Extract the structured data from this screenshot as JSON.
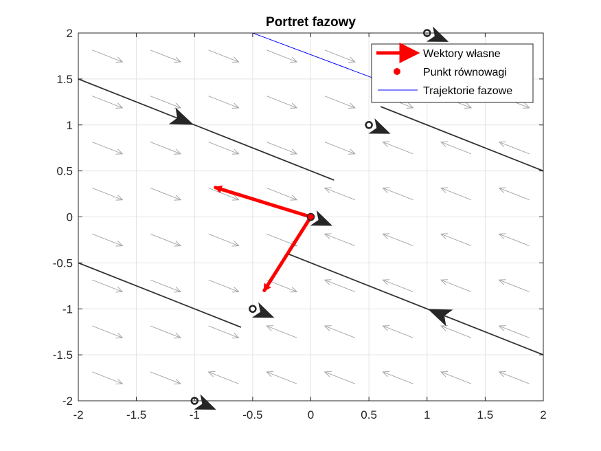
{
  "chart_data": {
    "type": "quiver",
    "title": "Portret fazowy",
    "xlabel": "",
    "ylabel": "",
    "xlim": [
      -2,
      2
    ],
    "ylim": [
      -2,
      2
    ],
    "xticks": [
      -2,
      -1.5,
      -1,
      -0.5,
      0,
      0.5,
      1,
      1.5,
      2
    ],
    "yticks": [
      -2,
      -1.5,
      -1,
      -0.5,
      0,
      0.5,
      1,
      1.5,
      2
    ],
    "xtick_labels": [
      "-2",
      "-1.5",
      "-1",
      "-0.5",
      "0",
      "0.5",
      "1",
      "1.5",
      "2"
    ],
    "ytick_labels": [
      "-2",
      "-1.5",
      "-1",
      "-0.5",
      "0",
      "0.5",
      "1",
      "1.5",
      "2"
    ],
    "grid": true,
    "legend_position": "top-right",
    "legend": [
      {
        "label": "Wektory własne",
        "kind": "arrow",
        "color": "#ff0000"
      },
      {
        "label": "Punkt równowagi",
        "kind": "dot",
        "color": "#ff0000"
      },
      {
        "label": "Trajektorie fazowe",
        "kind": "line",
        "color": "#0000ff"
      }
    ],
    "vector_field": {
      "color": "#a6a6a6",
      "x": [
        -1.75,
        -1.25,
        -0.75,
        -0.25,
        0.25,
        0.75,
        1.25,
        1.75
      ],
      "y": [
        -1.75,
        -1.25,
        -0.75,
        -0.25,
        0.25,
        0.75,
        1.25,
        1.75
      ],
      "direction_rows": [
        {
          "y": 1.75,
          "directions": [
            "right",
            "right",
            "right",
            "right",
            "right",
            "right",
            "right",
            "right"
          ]
        },
        {
          "y": 1.25,
          "directions": [
            "right",
            "right",
            "right",
            "right",
            "right",
            "right",
            "right",
            "right"
          ]
        },
        {
          "y": 0.75,
          "directions": [
            "right",
            "right",
            "right",
            "right",
            "right",
            "left",
            "left",
            "left"
          ]
        },
        {
          "y": 0.25,
          "directions": [
            "right",
            "right",
            "right",
            "right",
            "left",
            "left",
            "left",
            "left"
          ]
        },
        {
          "y": -0.25,
          "directions": [
            "right",
            "right",
            "right",
            "right",
            "left",
            "left",
            "left",
            "left"
          ]
        },
        {
          "y": -0.75,
          "directions": [
            "right",
            "right",
            "right",
            "right",
            "left",
            "left",
            "left",
            "left"
          ]
        },
        {
          "y": -1.25,
          "directions": [
            "right",
            "right",
            "right",
            "left",
            "left",
            "left",
            "left",
            "left"
          ]
        },
        {
          "y": -1.75,
          "directions": [
            "right",
            "right",
            "left",
            "left",
            "left",
            "left",
            "left",
            "left"
          ]
        }
      ]
    },
    "eigenvectors": [
      {
        "from": [
          0,
          0
        ],
        "to": [
          -0.82,
          0.32
        ]
      },
      {
        "from": [
          0,
          0
        ],
        "to": [
          -0.4,
          -0.8
        ]
      }
    ],
    "equilibrium": {
      "x": 0,
      "y": 0,
      "color": "#ff0000"
    },
    "trajectories": [
      {
        "color": "#0000ff",
        "x": [
          -0.5,
          0.6
        ],
        "y": [
          2.0,
          1.48
        ]
      },
      {
        "color": "#333333",
        "x": [
          -2.0,
          0.2
        ],
        "y": [
          1.5,
          0.4
        ]
      },
      {
        "color": "#333333",
        "x": [
          0.6,
          2.0
        ],
        "y": [
          1.2,
          0.5
        ]
      },
      {
        "color": "#333333",
        "x": [
          -0.2,
          2.0
        ],
        "y": [
          -0.4,
          -1.5
        ]
      },
      {
        "color": "#333333",
        "x": [
          -2.0,
          -0.6
        ],
        "y": [
          -0.5,
          -1.2
        ]
      }
    ],
    "trajectory_arrows": [
      {
        "x": -1.1,
        "y": 1.05,
        "direction": "right"
      },
      {
        "x": 1.1,
        "y": -1.05,
        "direction": "left"
      }
    ],
    "initial_points": [
      {
        "x": 1.0,
        "y": 2.0
      },
      {
        "x": 0.5,
        "y": 1.0
      },
      {
        "x": 0.0,
        "y": 0.0
      },
      {
        "x": -0.5,
        "y": -1.0
      },
      {
        "x": -1.0,
        "y": -2.0
      }
    ]
  }
}
